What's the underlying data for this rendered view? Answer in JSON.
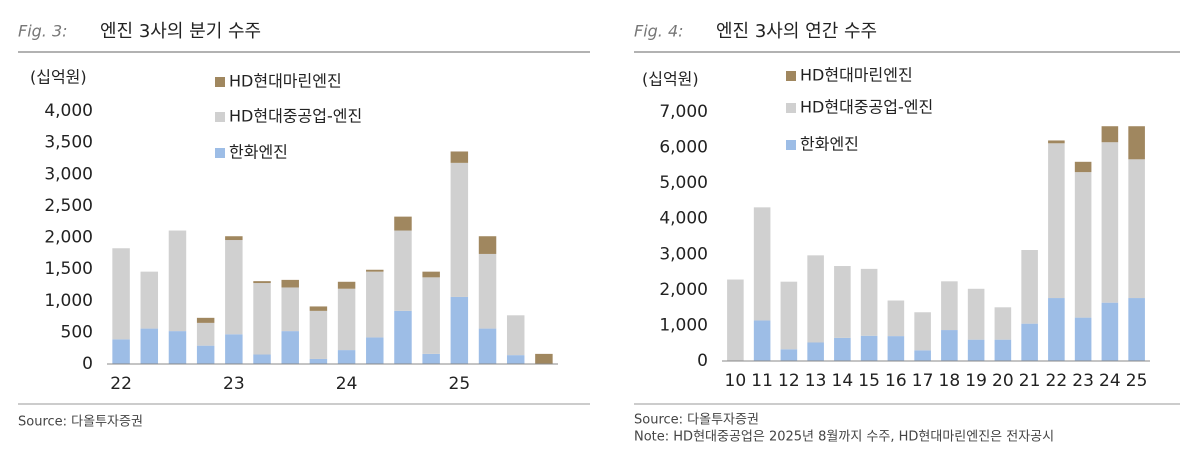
{
  "chart_data": [
    {
      "type": "bar",
      "stacked": true,
      "fig": "Fig. 3:",
      "title": "엔진 3사의 분기 수주",
      "unit": "(십억원)",
      "source": "Source: 다올투자증권",
      "categories": [
        "22",
        null,
        null,
        null,
        "23",
        null,
        null,
        null,
        "24",
        null,
        null,
        null,
        "25",
        null,
        null,
        null
      ],
      "series": [
        {
          "name": "한화엔진",
          "color": "#9dbde6",
          "values": [
            390,
            560,
            520,
            290,
            470,
            150,
            520,
            80,
            220,
            420,
            840,
            160,
            1060,
            560,
            140,
            0
          ]
        },
        {
          "name": "HD현대중공업-엔진",
          "color": "#d0d0d0",
          "values": [
            1440,
            900,
            1590,
            360,
            1490,
            1130,
            690,
            760,
            970,
            1040,
            1270,
            1210,
            2120,
            1180,
            630,
            0
          ]
        },
        {
          "name": "HD현대마린엔진",
          "color": "#a0875f",
          "values": [
            0,
            0,
            0,
            80,
            60,
            30,
            120,
            70,
            110,
            30,
            220,
            90,
            180,
            280,
            0,
            160
          ]
        }
      ],
      "ylim": [
        0,
        4000
      ],
      "yticks": [
        0,
        500,
        {
          "value": 1000,
          "label": "1,000"
        },
        {
          "value": 1500,
          "label": "1,500"
        },
        {
          "value": 2000,
          "label": "2,000"
        },
        {
          "value": 2500,
          "label": "2,500"
        },
        {
          "value": 3000,
          "label": "3,000"
        },
        {
          "value": 3500,
          "label": "3,500"
        },
        {
          "value": 4000,
          "label": "4,000"
        }
      ]
    },
    {
      "type": "bar",
      "stacked": true,
      "fig": "Fig. 4:",
      "title": "엔진 3사의 연간 수주",
      "unit": "(십억원)",
      "source": "Source: 다올투자증권",
      "note": "Note: HD현대중공업은 2025년 8월까지 수주, HD현대마린엔진은 전자공시",
      "categories": [
        "10",
        "11",
        "12",
        "13",
        "14",
        "15",
        "16",
        "17",
        "18",
        "19",
        "20",
        "21",
        "22",
        "23",
        "24",
        "25"
      ],
      "series": [
        {
          "name": "한화엔진",
          "color": "#9dbde6",
          "values": [
            0,
            1140,
            330,
            520,
            650,
            710,
            700,
            300,
            870,
            600,
            600,
            1050,
            1770,
            1220,
            1640,
            1770
          ]
        },
        {
          "name": "HD현대중공업-엔진",
          "color": "#d0d0d0",
          "values": [
            2290,
            3180,
            1900,
            2450,
            2020,
            1880,
            1000,
            1070,
            1370,
            1430,
            910,
            2070,
            4350,
            4090,
            4510,
            3900
          ]
        },
        {
          "name": "HD현대마린엔진",
          "color": "#a0875f",
          "values": [
            0,
            0,
            0,
            0,
            0,
            0,
            0,
            0,
            0,
            0,
            0,
            0,
            80,
            290,
            450,
            930
          ]
        }
      ],
      "ylim": [
        0,
        7000
      ],
      "yticks": [
        0,
        {
          "value": 1000,
          "label": "1,000"
        },
        {
          "value": 2000,
          "label": "2,000"
        },
        {
          "value": 3000,
          "label": "3,000"
        },
        {
          "value": 4000,
          "label": "4,000"
        },
        {
          "value": 5000,
          "label": "5,000"
        },
        {
          "value": 6000,
          "label": "6,000"
        },
        {
          "value": 7000,
          "label": "7,000"
        }
      ]
    }
  ]
}
